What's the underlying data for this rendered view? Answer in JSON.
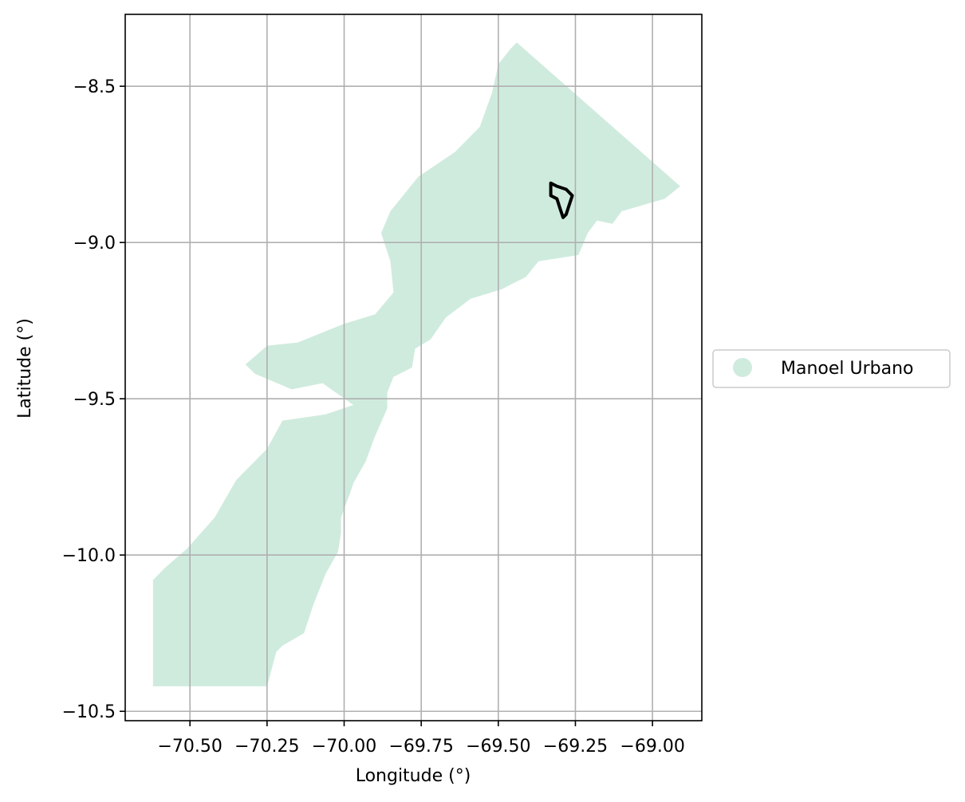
{
  "chart_data": {
    "type": "map",
    "xlabel": "Longitude (°)",
    "ylabel": "Latitude (°)",
    "xlim": [
      -70.71,
      -68.84
    ],
    "ylim": [
      -10.53,
      -8.27
    ],
    "xticks": [
      -70.5,
      -70.25,
      -70.0,
      -69.75,
      -69.5,
      -69.25,
      -69.0
    ],
    "xtick_labels": [
      "−70.50",
      "−70.25",
      "−70.00",
      "−69.75",
      "−69.50",
      "−69.25",
      "−69.00"
    ],
    "yticks": [
      -8.5,
      -9.0,
      -9.5,
      -10.0,
      -10.5
    ],
    "ytick_labels": [
      "−8.5",
      "−9.0",
      "−9.5",
      "−10.0",
      "−10.5"
    ],
    "grid": true,
    "legend": {
      "placement": "outside-right",
      "entries": [
        {
          "label": "Manoel Urbano",
          "color": "#cfebde"
        }
      ]
    },
    "region": {
      "name": "Manoel Urbano",
      "color": "#cfebde",
      "outline": [
        [
          -69.44,
          -8.36
        ],
        [
          -68.91,
          -8.82
        ],
        [
          -68.96,
          -8.86
        ],
        [
          -69.03,
          -8.88
        ],
        [
          -69.1,
          -8.9
        ],
        [
          -69.13,
          -8.94
        ],
        [
          -69.18,
          -8.93
        ],
        [
          -69.21,
          -8.97
        ],
        [
          -69.24,
          -9.04
        ],
        [
          -69.37,
          -9.06
        ],
        [
          -69.41,
          -9.11
        ],
        [
          -69.49,
          -9.15
        ],
        [
          -69.59,
          -9.18
        ],
        [
          -69.67,
          -9.24
        ],
        [
          -69.72,
          -9.31
        ],
        [
          -69.77,
          -9.34
        ],
        [
          -69.78,
          -9.4
        ],
        [
          -69.84,
          -9.43
        ],
        [
          -69.86,
          -9.48
        ],
        [
          -69.86,
          -9.53
        ],
        [
          -69.9,
          -9.62
        ],
        [
          -69.93,
          -9.7
        ],
        [
          -69.97,
          -9.77
        ],
        [
          -69.98,
          -9.8
        ],
        [
          -70.01,
          -9.88
        ],
        [
          -70.01,
          -9.93
        ],
        [
          -70.02,
          -9.99
        ],
        [
          -70.06,
          -10.06
        ],
        [
          -70.1,
          -10.16
        ],
        [
          -70.13,
          -10.25
        ],
        [
          -70.2,
          -10.29
        ],
        [
          -70.22,
          -10.31
        ],
        [
          -70.25,
          -10.42
        ],
        [
          -70.62,
          -10.42
        ],
        [
          -70.62,
          -10.08
        ],
        [
          -70.58,
          -10.04
        ],
        [
          -70.51,
          -9.98
        ],
        [
          -70.42,
          -9.88
        ],
        [
          -70.35,
          -9.76
        ],
        [
          -70.25,
          -9.66
        ],
        [
          -70.2,
          -9.57
        ],
        [
          -70.06,
          -9.55
        ],
        [
          -69.97,
          -9.52
        ],
        [
          -70.07,
          -9.45
        ],
        [
          -70.17,
          -9.47
        ],
        [
          -70.29,
          -9.42
        ],
        [
          -70.32,
          -9.39
        ],
        [
          -70.25,
          -9.33
        ],
        [
          -70.15,
          -9.32
        ],
        [
          -70.0,
          -9.26
        ],
        [
          -69.9,
          -9.23
        ],
        [
          -69.84,
          -9.16
        ],
        [
          -69.85,
          -9.06
        ],
        [
          -69.88,
          -8.97
        ],
        [
          -69.85,
          -8.9
        ],
        [
          -69.76,
          -8.79
        ],
        [
          -69.64,
          -8.71
        ],
        [
          -69.56,
          -8.63
        ],
        [
          -69.52,
          -8.52
        ],
        [
          -69.5,
          -8.43
        ],
        [
          -69.46,
          -8.38
        ]
      ]
    },
    "overlay_outline": {
      "color": "#000000",
      "outline": [
        [
          -69.33,
          -8.81
        ],
        [
          -69.31,
          -8.82
        ],
        [
          -69.28,
          -8.83
        ],
        [
          -69.26,
          -8.85
        ],
        [
          -69.27,
          -8.88
        ],
        [
          -69.28,
          -8.91
        ],
        [
          -69.29,
          -8.92
        ],
        [
          -69.3,
          -8.89
        ],
        [
          -69.31,
          -8.86
        ],
        [
          -69.33,
          -8.85
        ],
        [
          -69.33,
          -8.83
        ]
      ]
    }
  }
}
